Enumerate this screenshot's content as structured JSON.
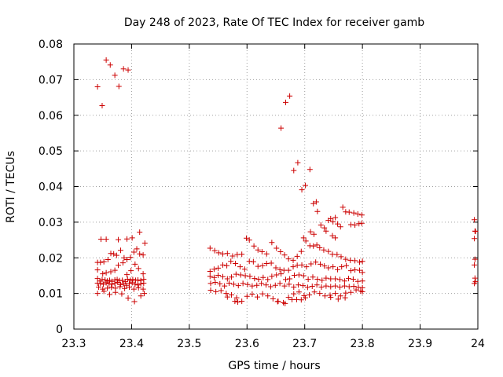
{
  "chart_data": {
    "type": "scatter",
    "title": "Day 248 of 2023, Rate Of TEC Index for receiver gamb",
    "xlabel": "GPS time / hours",
    "ylabel": "ROTI / TECUs",
    "xlim": [
      23.3,
      24.0
    ],
    "ylim": [
      0,
      0.08
    ],
    "xticks": [
      23.3,
      23.4,
      23.5,
      23.6,
      23.7,
      23.8,
      23.9,
      24.0
    ],
    "xtick_labels": [
      "23.3",
      "23.4",
      "23.5",
      "23.6",
      "23.7",
      "23.8",
      "23.9",
      "24"
    ],
    "yticks": [
      0,
      0.01,
      0.02,
      0.03,
      0.04,
      0.05,
      0.06,
      0.07,
      0.08
    ],
    "ytick_labels": [
      "0",
      "0.01",
      "0.02",
      "0.03",
      "0.04",
      "0.05",
      "0.06",
      "0.07",
      "0.08"
    ],
    "grid": true,
    "marker": "+",
    "color": "#cc0000",
    "points": [
      [
        23.341,
        0.068
      ],
      [
        23.349,
        0.0627
      ],
      [
        23.356,
        0.0755
      ],
      [
        23.363,
        0.0741
      ],
      [
        23.371,
        0.0712
      ],
      [
        23.378,
        0.0681
      ],
      [
        23.386,
        0.073
      ],
      [
        23.394,
        0.0727
      ],
      [
        23.347,
        0.0252
      ],
      [
        23.356,
        0.0252
      ],
      [
        23.377,
        0.0251
      ],
      [
        23.392,
        0.0253
      ],
      [
        23.401,
        0.0256
      ],
      [
        23.414,
        0.0272
      ],
      [
        23.423,
        0.0241
      ],
      [
        23.341,
        0.0187
      ],
      [
        23.346,
        0.0187
      ],
      [
        23.352,
        0.0189
      ],
      [
        23.359,
        0.0195
      ],
      [
        23.364,
        0.0212
      ],
      [
        23.369,
        0.0211
      ],
      [
        23.374,
        0.0207
      ],
      [
        23.381,
        0.0221
      ],
      [
        23.387,
        0.02
      ],
      [
        23.392,
        0.0195
      ],
      [
        23.398,
        0.0201
      ],
      [
        23.404,
        0.0216
      ],
      [
        23.409,
        0.0225
      ],
      [
        23.414,
        0.0211
      ],
      [
        23.42,
        0.0208
      ],
      [
        23.341,
        0.0166
      ],
      [
        23.35,
        0.0155
      ],
      [
        23.356,
        0.0158
      ],
      [
        23.364,
        0.0161
      ],
      [
        23.371,
        0.0165
      ],
      [
        23.377,
        0.0179
      ],
      [
        23.385,
        0.0186
      ],
      [
        23.392,
        0.0153
      ],
      [
        23.399,
        0.0164
      ],
      [
        23.406,
        0.0182
      ],
      [
        23.412,
        0.017
      ],
      [
        23.42,
        0.0155
      ],
      [
        23.341,
        0.0142
      ],
      [
        23.345,
        0.0135
      ],
      [
        23.349,
        0.0139
      ],
      [
        23.354,
        0.0138
      ],
      [
        23.358,
        0.0135
      ],
      [
        23.362,
        0.0137
      ],
      [
        23.366,
        0.0134
      ],
      [
        23.371,
        0.0138
      ],
      [
        23.375,
        0.0139
      ],
      [
        23.379,
        0.0136
      ],
      [
        23.384,
        0.0137
      ],
      [
        23.389,
        0.0133
      ],
      [
        23.393,
        0.014
      ],
      [
        23.398,
        0.0137
      ],
      [
        23.402,
        0.0139
      ],
      [
        23.407,
        0.0137
      ],
      [
        23.411,
        0.0138
      ],
      [
        23.416,
        0.0136
      ],
      [
        23.421,
        0.014
      ],
      [
        23.341,
        0.0129
      ],
      [
        23.346,
        0.0128
      ],
      [
        23.351,
        0.0126
      ],
      [
        23.356,
        0.013
      ],
      [
        23.361,
        0.0127
      ],
      [
        23.366,
        0.0126
      ],
      [
        23.371,
        0.0128
      ],
      [
        23.376,
        0.0131
      ],
      [
        23.381,
        0.0125
      ],
      [
        23.386,
        0.0127
      ],
      [
        23.391,
        0.0123
      ],
      [
        23.396,
        0.0128
      ],
      [
        23.401,
        0.013
      ],
      [
        23.406,
        0.0126
      ],
      [
        23.411,
        0.0124
      ],
      [
        23.416,
        0.0127
      ],
      [
        23.421,
        0.0129
      ],
      [
        23.343,
        0.0118
      ],
      [
        23.35,
        0.0112
      ],
      [
        23.358,
        0.0115
      ],
      [
        23.365,
        0.0117
      ],
      [
        23.372,
        0.0115
      ],
      [
        23.38,
        0.0119
      ],
      [
        23.388,
        0.0114
      ],
      [
        23.396,
        0.0118
      ],
      [
        23.404,
        0.0112
      ],
      [
        23.412,
        0.0116
      ],
      [
        23.42,
        0.0112
      ],
      [
        23.341,
        0.01
      ],
      [
        23.352,
        0.0106
      ],
      [
        23.362,
        0.0097
      ],
      [
        23.372,
        0.0103
      ],
      [
        23.383,
        0.0099
      ],
      [
        23.394,
        0.0087
      ],
      [
        23.405,
        0.0077
      ],
      [
        23.416,
        0.0093
      ],
      [
        23.422,
        0.01
      ],
      [
        23.536,
        0.0227
      ],
      [
        23.544,
        0.022
      ],
      [
        23.551,
        0.0214
      ],
      [
        23.558,
        0.0211
      ],
      [
        23.566,
        0.0212
      ],
      [
        23.575,
        0.0205
      ],
      [
        23.583,
        0.0209
      ],
      [
        23.591,
        0.021
      ],
      [
        23.599,
        0.0255
      ],
      [
        23.604,
        0.025
      ],
      [
        23.612,
        0.0233
      ],
      [
        23.619,
        0.0222
      ],
      [
        23.626,
        0.0217
      ],
      [
        23.634,
        0.0211
      ],
      [
        23.643,
        0.0243
      ],
      [
        23.651,
        0.0227
      ],
      [
        23.658,
        0.0217
      ],
      [
        23.665,
        0.0208
      ],
      [
        23.672,
        0.0197
      ],
      [
        23.68,
        0.0193
      ],
      [
        23.687,
        0.0204
      ],
      [
        23.694,
        0.0218
      ],
      [
        23.698,
        0.0256
      ],
      [
        23.702,
        0.0247
      ],
      [
        23.709,
        0.0234
      ],
      [
        23.715,
        0.0233
      ],
      [
        23.721,
        0.0236
      ],
      [
        23.726,
        0.0228
      ],
      [
        23.733,
        0.0222
      ],
      [
        23.741,
        0.0218
      ],
      [
        23.748,
        0.021
      ],
      [
        23.756,
        0.0209
      ],
      [
        23.763,
        0.0203
      ],
      [
        23.771,
        0.0196
      ],
      [
        23.779,
        0.0193
      ],
      [
        23.787,
        0.0192
      ],
      [
        23.795,
        0.0188
      ],
      [
        23.8,
        0.019
      ],
      [
        23.536,
        0.0162
      ],
      [
        23.543,
        0.0168
      ],
      [
        23.55,
        0.0171
      ],
      [
        23.558,
        0.018
      ],
      [
        23.565,
        0.0178
      ],
      [
        23.572,
        0.019
      ],
      [
        23.58,
        0.0184
      ],
      [
        23.588,
        0.0175
      ],
      [
        23.596,
        0.0168
      ],
      [
        23.604,
        0.019
      ],
      [
        23.611,
        0.0189
      ],
      [
        23.619,
        0.0176
      ],
      [
        23.627,
        0.0178
      ],
      [
        23.634,
        0.0184
      ],
      [
        23.642,
        0.0185
      ],
      [
        23.65,
        0.0172
      ],
      [
        23.657,
        0.0167
      ],
      [
        23.664,
        0.0165
      ],
      [
        23.672,
        0.0165
      ],
      [
        23.68,
        0.0175
      ],
      [
        23.687,
        0.0179
      ],
      [
        23.695,
        0.018
      ],
      [
        23.703,
        0.0175
      ],
      [
        23.711,
        0.0183
      ],
      [
        23.719,
        0.0188
      ],
      [
        23.727,
        0.0182
      ],
      [
        23.734,
        0.0177
      ],
      [
        23.741,
        0.0172
      ],
      [
        23.749,
        0.0175
      ],
      [
        23.757,
        0.0167
      ],
      [
        23.764,
        0.0175
      ],
      [
        23.772,
        0.0178
      ],
      [
        23.78,
        0.0164
      ],
      [
        23.787,
        0.0166
      ],
      [
        23.795,
        0.0165
      ],
      [
        23.8,
        0.0159
      ],
      [
        23.536,
        0.0148
      ],
      [
        23.543,
        0.0145
      ],
      [
        23.55,
        0.0151
      ],
      [
        23.558,
        0.0147
      ],
      [
        23.566,
        0.0141
      ],
      [
        23.573,
        0.0146
      ],
      [
        23.581,
        0.0154
      ],
      [
        23.589,
        0.0152
      ],
      [
        23.597,
        0.015
      ],
      [
        23.605,
        0.0148
      ],
      [
        23.613,
        0.0142
      ],
      [
        23.62,
        0.014
      ],
      [
        23.628,
        0.0145
      ],
      [
        23.636,
        0.0139
      ],
      [
        23.643,
        0.0148
      ],
      [
        23.651,
        0.0152
      ],
      [
        23.659,
        0.0155
      ],
      [
        23.667,
        0.0139
      ],
      [
        23.674,
        0.0141
      ],
      [
        23.682,
        0.0151
      ],
      [
        23.69,
        0.0152
      ],
      [
        23.698,
        0.015
      ],
      [
        23.706,
        0.014
      ],
      [
        23.714,
        0.0146
      ],
      [
        23.722,
        0.014
      ],
      [
        23.73,
        0.0137
      ],
      [
        23.737,
        0.0143
      ],
      [
        23.745,
        0.0141
      ],
      [
        23.753,
        0.0141
      ],
      [
        23.761,
        0.0139
      ],
      [
        23.769,
        0.0135
      ],
      [
        23.776,
        0.0142
      ],
      [
        23.784,
        0.014
      ],
      [
        23.792,
        0.0134
      ],
      [
        23.8,
        0.0135
      ],
      [
        23.537,
        0.0128
      ],
      [
        23.545,
        0.0131
      ],
      [
        23.553,
        0.0127
      ],
      [
        23.561,
        0.0121
      ],
      [
        23.569,
        0.0129
      ],
      [
        23.577,
        0.0126
      ],
      [
        23.585,
        0.0122
      ],
      [
        23.593,
        0.0128
      ],
      [
        23.601,
        0.0125
      ],
      [
        23.609,
        0.0121
      ],
      [
        23.617,
        0.0123
      ],
      [
        23.625,
        0.0128
      ],
      [
        23.633,
        0.0124
      ],
      [
        23.641,
        0.0119
      ],
      [
        23.649,
        0.0123
      ],
      [
        23.657,
        0.0128
      ],
      [
        23.665,
        0.0121
      ],
      [
        23.673,
        0.0126
      ],
      [
        23.681,
        0.0118
      ],
      [
        23.689,
        0.0124
      ],
      [
        23.697,
        0.0122
      ],
      [
        23.705,
        0.0117
      ],
      [
        23.713,
        0.012
      ],
      [
        23.721,
        0.0124
      ],
      [
        23.729,
        0.0118
      ],
      [
        23.737,
        0.0121
      ],
      [
        23.745,
        0.0119
      ],
      [
        23.753,
        0.0121
      ],
      [
        23.761,
        0.0118
      ],
      [
        23.769,
        0.0121
      ],
      [
        23.777,
        0.0119
      ],
      [
        23.785,
        0.012
      ],
      [
        23.793,
        0.0117
      ],
      [
        23.8,
        0.0116
      ],
      [
        23.537,
        0.0109
      ],
      [
        23.546,
        0.0105
      ],
      [
        23.555,
        0.0108
      ],
      [
        23.564,
        0.01
      ],
      [
        23.573,
        0.0096
      ],
      [
        23.582,
        0.0088
      ],
      [
        23.591,
        0.0078
      ],
      [
        23.6,
        0.0092
      ],
      [
        23.609,
        0.0098
      ],
      [
        23.618,
        0.009
      ],
      [
        23.627,
        0.0099
      ],
      [
        23.636,
        0.0093
      ],
      [
        23.645,
        0.0085
      ],
      [
        23.654,
        0.0078
      ],
      [
        23.663,
        0.0074
      ],
      [
        23.672,
        0.0089
      ],
      [
        23.681,
        0.0099
      ],
      [
        23.69,
        0.0104
      ],
      [
        23.699,
        0.0094
      ],
      [
        23.708,
        0.0096
      ],
      [
        23.717,
        0.0104
      ],
      [
        23.726,
        0.01
      ],
      [
        23.735,
        0.0093
      ],
      [
        23.744,
        0.0095
      ],
      [
        23.753,
        0.01
      ],
      [
        23.762,
        0.0093
      ],
      [
        23.771,
        0.0101
      ],
      [
        23.78,
        0.0103
      ],
      [
        23.789,
        0.011
      ],
      [
        23.797,
        0.0107
      ],
      [
        23.8,
        0.0105
      ],
      [
        23.566,
        0.009
      ],
      [
        23.579,
        0.0078
      ],
      [
        23.584,
        0.0076
      ],
      [
        23.653,
        0.0077
      ],
      [
        23.666,
        0.0072
      ],
      [
        23.678,
        0.0083
      ],
      [
        23.686,
        0.0083
      ],
      [
        23.694,
        0.0082
      ],
      [
        23.701,
        0.0088
      ],
      [
        23.745,
        0.0089
      ],
      [
        23.758,
        0.0084
      ],
      [
        23.77,
        0.0088
      ],
      [
        23.659,
        0.0564
      ],
      [
        23.667,
        0.0636
      ],
      [
        23.674,
        0.0654
      ],
      [
        23.681,
        0.0445
      ],
      [
        23.688,
        0.0467
      ],
      [
        23.695,
        0.0391
      ],
      [
        23.701,
        0.0403
      ],
      [
        23.709,
        0.0448
      ],
      [
        23.715,
        0.0352
      ],
      [
        23.72,
        0.0357
      ],
      [
        23.722,
        0.033
      ],
      [
        23.728,
        0.0292
      ],
      [
        23.734,
        0.0284
      ],
      [
        23.737,
        0.0275
      ],
      [
        23.741,
        0.0305
      ],
      [
        23.745,
        0.031
      ],
      [
        23.749,
        0.0301
      ],
      [
        23.753,
        0.0313
      ],
      [
        23.757,
        0.0295
      ],
      [
        23.762,
        0.0287
      ],
      [
        23.766,
        0.0342
      ],
      [
        23.771,
        0.0329
      ],
      [
        23.777,
        0.0328
      ],
      [
        23.785,
        0.0326
      ],
      [
        23.792,
        0.0323
      ],
      [
        23.799,
        0.032
      ],
      [
        23.78,
        0.0293
      ],
      [
        23.787,
        0.0292
      ],
      [
        23.794,
        0.0296
      ],
      [
        23.799,
        0.0297
      ],
      [
        23.71,
        0.0273
      ],
      [
        23.716,
        0.0266
      ],
      [
        23.748,
        0.0262
      ],
      [
        23.753,
        0.0256
      ],
      [
        23.994,
        0.0307
      ],
      [
        23.995,
        0.0275
      ],
      [
        23.996,
        0.0274
      ],
      [
        23.994,
        0.0254
      ],
      [
        23.995,
        0.0196
      ],
      [
        23.994,
        0.018
      ],
      [
        23.995,
        0.0143
      ],
      [
        23.996,
        0.0133
      ],
      [
        23.994,
        0.0128
      ]
    ]
  }
}
